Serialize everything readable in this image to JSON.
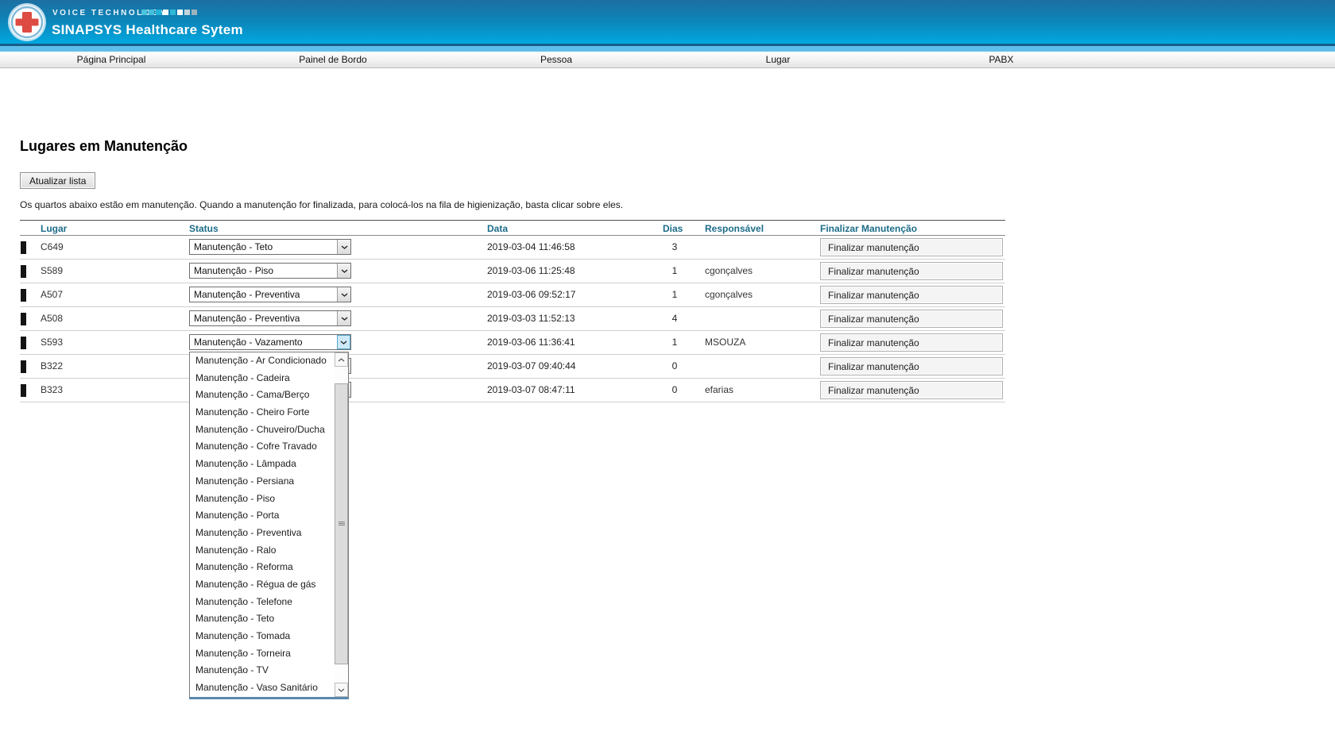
{
  "header": {
    "brand_small": "VOICE TECHNOLOGY",
    "brand_title": "SINAPSYS Healthcare Sytem",
    "squares": [
      "#4cc4de",
      "#44c0dc",
      "#22b4d8",
      "#ffffff",
      "#30b8d6",
      "#ffffff",
      "#c2d3da",
      "#9db3be"
    ]
  },
  "nav": {
    "items": [
      "Página Principal",
      "Painel de Bordo",
      "Pessoa",
      "Lugar",
      "PABX"
    ]
  },
  "page": {
    "title": "Lugares em Manutenção",
    "refresh_button": "Atualizar lista",
    "description": "Os quartos abaixo estão em manutenção. Quando a manutenção for finalizada, para colocá-los na fila de higienização, basta clicar sobre eles."
  },
  "table": {
    "columns": [
      "Lugar",
      "Status",
      "Data",
      "Dias",
      "Responsável",
      "Finalizar Manutenção"
    ],
    "finalize_button_label": "Finalizar manutenção",
    "rows": [
      {
        "lugar": "C649",
        "status": "Manutenção - Teto",
        "data": "2019-03-04 11:46:58",
        "dias": "3",
        "responsavel": "",
        "dropdown_open": false,
        "status_visible": true
      },
      {
        "lugar": "S589",
        "status": "Manutenção - Piso",
        "data": "2019-03-06 11:25:48",
        "dias": "1",
        "responsavel": "cgonçalves",
        "dropdown_open": false,
        "status_visible": true
      },
      {
        "lugar": "A507",
        "status": "Manutenção - Preventiva",
        "data": "2019-03-06 09:52:17",
        "dias": "1",
        "responsavel": "cgonçalves",
        "dropdown_open": false,
        "status_visible": true
      },
      {
        "lugar": "A508",
        "status": "Manutenção - Preventiva",
        "data": "2019-03-03 11:52:13",
        "dias": "4",
        "responsavel": "",
        "dropdown_open": false,
        "status_visible": true
      },
      {
        "lugar": "S593",
        "status": "Manutenção - Vazamento",
        "data": "2019-03-06 11:36:41",
        "dias": "1",
        "responsavel": "MSOUZA",
        "dropdown_open": true,
        "status_visible": true
      },
      {
        "lugar": "B322",
        "status": "",
        "data": "2019-03-07 09:40:44",
        "dias": "0",
        "responsavel": "",
        "dropdown_open": false,
        "status_visible": false
      },
      {
        "lugar": "B323",
        "status": "",
        "data": "2019-03-07 08:47:11",
        "dias": "0",
        "responsavel": "efarias",
        "dropdown_open": false,
        "status_visible": false
      }
    ]
  },
  "dropdown": {
    "open_for_row": "S593",
    "options": [
      "Manutenção - Ar Condicionado",
      "Manutenção - Cadeira",
      "Manutenção - Cama/Berço",
      "Manutenção - Cheiro Forte",
      "Manutenção - Chuveiro/Ducha",
      "Manutenção - Cofre Travado",
      "Manutenção - Lâmpada",
      "Manutenção - Persiana",
      "Manutenção - Piso",
      "Manutenção - Porta",
      "Manutenção - Preventiva",
      "Manutenção - Ralo",
      "Manutenção - Reforma",
      "Manutenção - Régua de gás",
      "Manutenção - Telefone",
      "Manutenção - Teto",
      "Manutenção - Tomada",
      "Manutenção - Torneira",
      "Manutenção - TV",
      "Manutenção - Vaso Sanitário"
    ]
  },
  "colors": {
    "header_top": "#1c6fa2",
    "header_bottom": "#00a8e0",
    "header_line": "#175d88",
    "header_strip": "#5fbde9",
    "nav_text": "#111111",
    "th_color": "#1d6c88",
    "list_focus_border": "#5988ae",
    "select_active_bg": "#cde9f8",
    "select_active_border": "#5ba7d1",
    "bar_color": "#141414",
    "cross_red": "#dd4b43",
    "logo_ring_blue": "#7fb9d9"
  }
}
